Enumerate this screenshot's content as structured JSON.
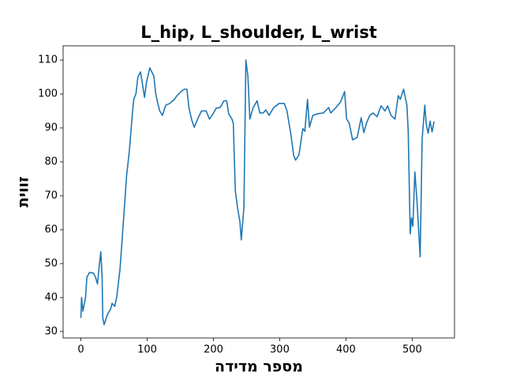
{
  "chart_data": {
    "type": "line",
    "title": "L_hip, L_shoulder, L_wrist",
    "x_label": "מספר מדידה",
    "y_label": "זווית",
    "x": [
      0,
      1,
      3,
      7,
      9,
      13,
      19,
      22,
      25,
      27,
      30,
      32,
      33,
      35,
      40,
      45,
      47,
      51,
      54,
      59,
      64,
      69,
      73,
      78,
      80,
      83,
      86,
      90,
      92,
      96,
      99,
      104,
      110,
      113,
      116,
      119,
      123,
      128,
      134,
      137,
      141,
      145,
      151,
      156,
      160,
      163,
      167,
      171,
      177,
      182,
      189,
      194,
      199,
      204,
      210,
      216,
      220,
      223,
      228,
      230,
      233,
      236,
      240,
      242,
      246,
      247,
      249,
      252,
      255,
      260,
      266,
      270,
      275,
      279,
      284,
      291,
      299,
      307,
      311,
      317,
      321,
      324,
      329,
      335,
      338,
      342,
      345,
      350,
      358,
      366,
      374,
      377,
      385,
      392,
      398,
      401,
      405,
      410,
      417,
      423,
      427,
      431,
      436,
      441,
      447,
      453,
      459,
      463,
      468,
      474,
      479,
      482,
      487,
      492,
      494,
      497,
      499,
      501,
      504,
      507,
      512,
      515,
      519,
      521,
      524,
      527,
      530,
      533
    ],
    "series": [
      {
        "name": "L_hip, L_shoulder, L_wrist",
        "color": "#1f77b4",
        "values": [
          34,
          40,
          36,
          40,
          46,
          47.4,
          47.2,
          46,
          44,
          48,
          53.5,
          46,
          34,
          32,
          35,
          36.7,
          38.3,
          37.4,
          40,
          48.4,
          62,
          76,
          83,
          95,
          98.6,
          100,
          105,
          106.5,
          104,
          99,
          103.5,
          107.7,
          105.3,
          100,
          97.2,
          95,
          93.7,
          96.7,
          97.2,
          97.7,
          98.4,
          99.5,
          100.7,
          101.4,
          101.4,
          96,
          92.5,
          90.2,
          93,
          95,
          95,
          92.6,
          94,
          95.8,
          96,
          98,
          98,
          94.2,
          92.6,
          91.4,
          71.6,
          67,
          62.3,
          57,
          66.5,
          81,
          110,
          105.3,
          92.6,
          96,
          98,
          94.4,
          94.4,
          95.3,
          93.7,
          96,
          97.2,
          97.2,
          95,
          88,
          82,
          80.5,
          82,
          89.8,
          89,
          98.4,
          90.2,
          93.7,
          94.2,
          94.4,
          96,
          94.4,
          96,
          97.7,
          100.7,
          92.6,
          91.4,
          86.5,
          87.2,
          93,
          88.6,
          91.4,
          93.7,
          94.4,
          93.3,
          96.5,
          95,
          96.5,
          93.7,
          92.6,
          99.5,
          98.4,
          101.4,
          96.7,
          89,
          58.8,
          63.5,
          61,
          77,
          69.3,
          52,
          86.7,
          96.7,
          91.4,
          88.4,
          92,
          88.8,
          91.9
        ]
      }
    ],
    "xlim": [
      -26.85,
      563.85
    ],
    "ylim": [
      28.1,
      114.2
    ],
    "xticks": [
      0,
      100,
      200,
      300,
      400,
      500
    ],
    "yticks": [
      30,
      40,
      50,
      60,
      70,
      80,
      90,
      100,
      110
    ]
  }
}
